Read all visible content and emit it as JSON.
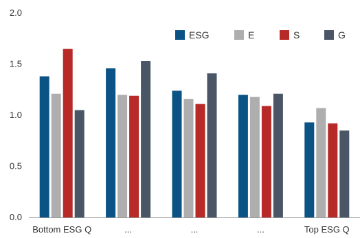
{
  "chart_data": {
    "type": "bar",
    "categories": [
      "Bottom ESG Q",
      "...",
      "...",
      "...",
      "Top ESG Q"
    ],
    "series": [
      {
        "name": "ESG",
        "color": "#0b5385",
        "values": [
          1.38,
          1.46,
          1.24,
          1.2,
          0.93
        ]
      },
      {
        "name": "E",
        "color": "#aeaeae",
        "values": [
          1.21,
          1.2,
          1.16,
          1.18,
          1.07
        ]
      },
      {
        "name": "S",
        "color": "#b72a27",
        "values": [
          1.65,
          1.19,
          1.11,
          1.09,
          0.92
        ]
      },
      {
        "name": "G",
        "color": "#4a5566",
        "values": [
          1.05,
          1.53,
          1.41,
          1.21,
          0.85
        ]
      }
    ],
    "ylim": [
      0.0,
      2.0
    ],
    "yticks": [
      "0.0",
      "0.5",
      "1.0",
      "1.5",
      "2.0"
    ],
    "ytick_values": [
      0.0,
      0.5,
      1.0,
      1.5,
      2.0
    ],
    "grid": "none",
    "legend_position": "top-right"
  }
}
